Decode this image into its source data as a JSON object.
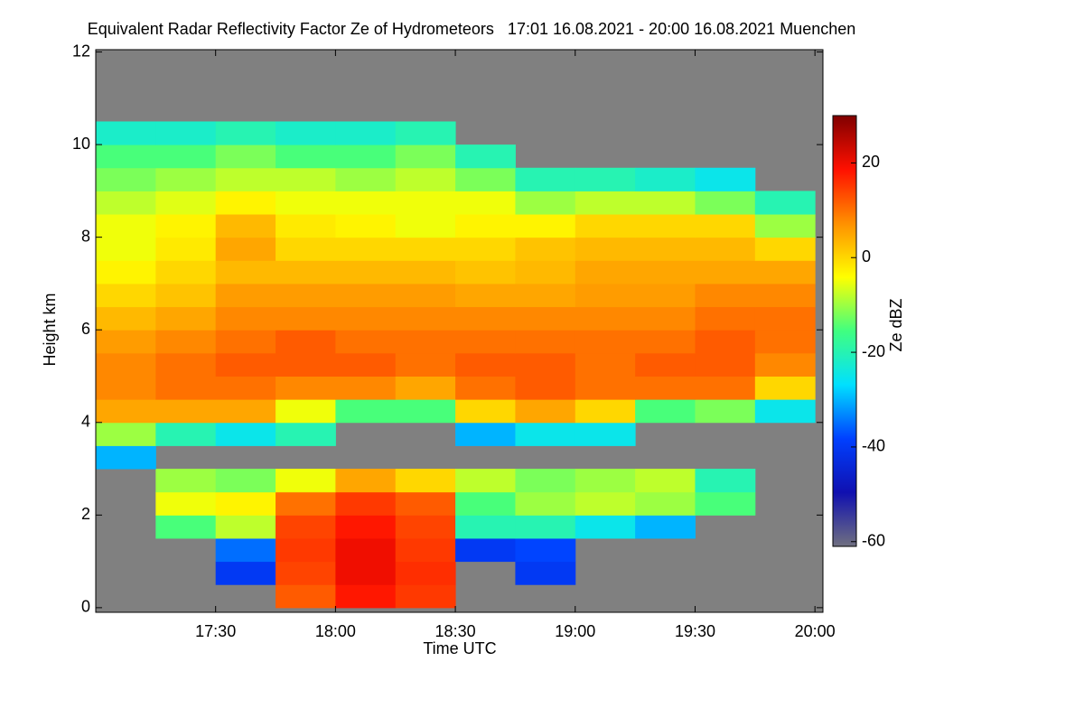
{
  "chart_data": {
    "type": "heatmap",
    "title": "Equivalent Radar Reflectivity Factor Ze of Hydrometeors   17:01 16.08.2021 - 20:00 16.08.2021 Muenchen",
    "x_label": "Time UTC",
    "y_label": "Height km",
    "colorbar_label": "Ze dBZ",
    "xlim": [
      0,
      182
    ],
    "xticks": [
      {
        "value": 30,
        "label": "17:30"
      },
      {
        "value": 60,
        "label": "18:00"
      },
      {
        "value": 90,
        "label": "18:30"
      },
      {
        "value": 120,
        "label": "19:00"
      },
      {
        "value": 150,
        "label": "19:30"
      },
      {
        "value": 180,
        "label": "20:00"
      }
    ],
    "ylim": [
      -0.1,
      12.05
    ],
    "yticks": [
      0,
      2,
      4,
      6,
      8,
      10,
      12
    ],
    "clim": [
      -61,
      30
    ],
    "cticks": [
      -60,
      -40,
      -20,
      0,
      20
    ],
    "colormap": [
      "#707080",
      "#1010b0",
      "#0040ff",
      "#00e0ff",
      "#40ff80",
      "#ffff00",
      "#ff9000",
      "#ff1000",
      "#800000"
    ],
    "missing_color": "#808080",
    "x": [
      7.5,
      22.5,
      37.5,
      52.5,
      67.5,
      82.5,
      97.5,
      112.5,
      127.5,
      142.5,
      157.5,
      172.5
    ],
    "y": [
      0.25,
      0.75,
      1.25,
      1.75,
      2.25,
      2.75,
      3.25,
      3.75,
      4.25,
      4.75,
      5.25,
      5.75,
      6.25,
      6.75,
      7.25,
      7.75,
      8.25,
      8.75,
      9.25,
      9.75,
      10.25,
      10.75,
      11.25,
      11.75
    ],
    "values": [
      [
        null,
        null,
        null,
        12,
        18,
        15,
        null,
        null,
        null,
        null,
        null,
        null
      ],
      [
        null,
        null,
        -40,
        14,
        20,
        16,
        null,
        -40,
        null,
        null,
        null,
        null
      ],
      [
        null,
        null,
        -35,
        15,
        20,
        15,
        -40,
        -38,
        null,
        null,
        null,
        null
      ],
      [
        null,
        -15,
        -8,
        14,
        18,
        14,
        -20,
        -20,
        -25,
        -30,
        null,
        null
      ],
      [
        null,
        -5,
        -3,
        10,
        15,
        12,
        -15,
        -10,
        -8,
        -10,
        -15,
        null
      ],
      [
        null,
        -10,
        -12,
        -5,
        5,
        0,
        -8,
        -12,
        -10,
        -8,
        -20,
        null
      ],
      [
        -30,
        null,
        null,
        null,
        null,
        null,
        null,
        null,
        null,
        null,
        null,
        null
      ],
      [
        -10,
        -20,
        -25,
        -20,
        null,
        null,
        -30,
        -25,
        -25,
        null,
        null,
        null
      ],
      [
        5,
        5,
        5,
        -5,
        -15,
        -15,
        0,
        5,
        0,
        -15,
        -12,
        -25
      ],
      [
        8,
        10,
        10,
        8,
        8,
        5,
        10,
        12,
        10,
        10,
        10,
        0
      ],
      [
        8,
        10,
        12,
        12,
        12,
        10,
        12,
        12,
        10,
        12,
        12,
        8
      ],
      [
        6,
        8,
        10,
        12,
        10,
        10,
        10,
        10,
        10,
        10,
        12,
        10
      ],
      [
        3,
        5,
        8,
        8,
        8,
        8,
        8,
        8,
        8,
        8,
        10,
        10
      ],
      [
        0,
        2,
        6,
        6,
        6,
        6,
        5,
        5,
        6,
        6,
        8,
        8
      ],
      [
        -3,
        0,
        3,
        3,
        3,
        3,
        2,
        3,
        5,
        5,
        5,
        5
      ],
      [
        -5,
        -2,
        5,
        0,
        0,
        0,
        0,
        2,
        3,
        3,
        3,
        0
      ],
      [
        -5,
        -3,
        3,
        -2,
        -3,
        -5,
        -3,
        -3,
        0,
        0,
        0,
        -10
      ],
      [
        -8,
        -6,
        -3,
        -5,
        -5,
        -5,
        -5,
        -10,
        -8,
        -8,
        -12,
        -20
      ],
      [
        -12,
        -10,
        -8,
        -8,
        -10,
        -8,
        -12,
        -20,
        -20,
        -22,
        -25,
        null
      ],
      [
        -15,
        -15,
        -12,
        -15,
        -15,
        -12,
        -20,
        null,
        null,
        null,
        null,
        null
      ],
      [
        -22,
        -22,
        -20,
        -22,
        -22,
        -20,
        null,
        null,
        null,
        null,
        null,
        null
      ],
      [
        null,
        null,
        null,
        null,
        null,
        null,
        null,
        null,
        null,
        null,
        null,
        null
      ],
      [
        null,
        null,
        null,
        null,
        null,
        null,
        null,
        null,
        null,
        null,
        null,
        null
      ],
      [
        null,
        null,
        null,
        null,
        null,
        null,
        null,
        null,
        null,
        null,
        null,
        null
      ]
    ]
  }
}
